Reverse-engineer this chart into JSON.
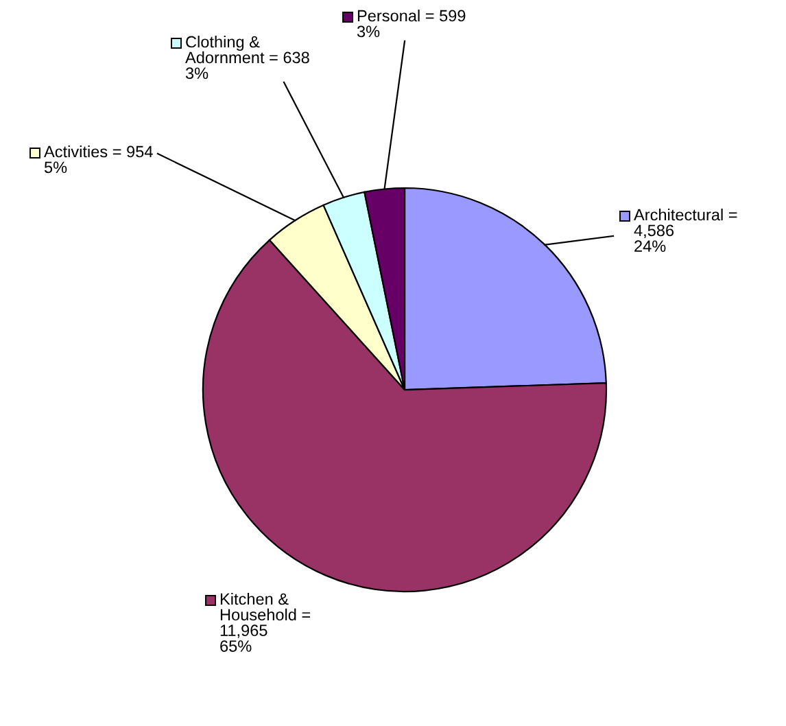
{
  "chart_data": {
    "type": "pie",
    "categories": [
      "Architectural",
      "Kitchen &\nHousehold",
      "Activities",
      "Clothing &\nAdornment",
      "Personal"
    ],
    "values": [
      4586,
      11965,
      954,
      638,
      599
    ],
    "value_labels": [
      "=\n4,586\n24%",
      "=\n11,965\n65%",
      "= 954\n5%",
      "= 638\n3%",
      "= 599\n3%"
    ],
    "colors": [
      "#9999ff",
      "#993366",
      "#ffffcc",
      "#ccffff",
      "#660066"
    ],
    "legend": "left"
  }
}
